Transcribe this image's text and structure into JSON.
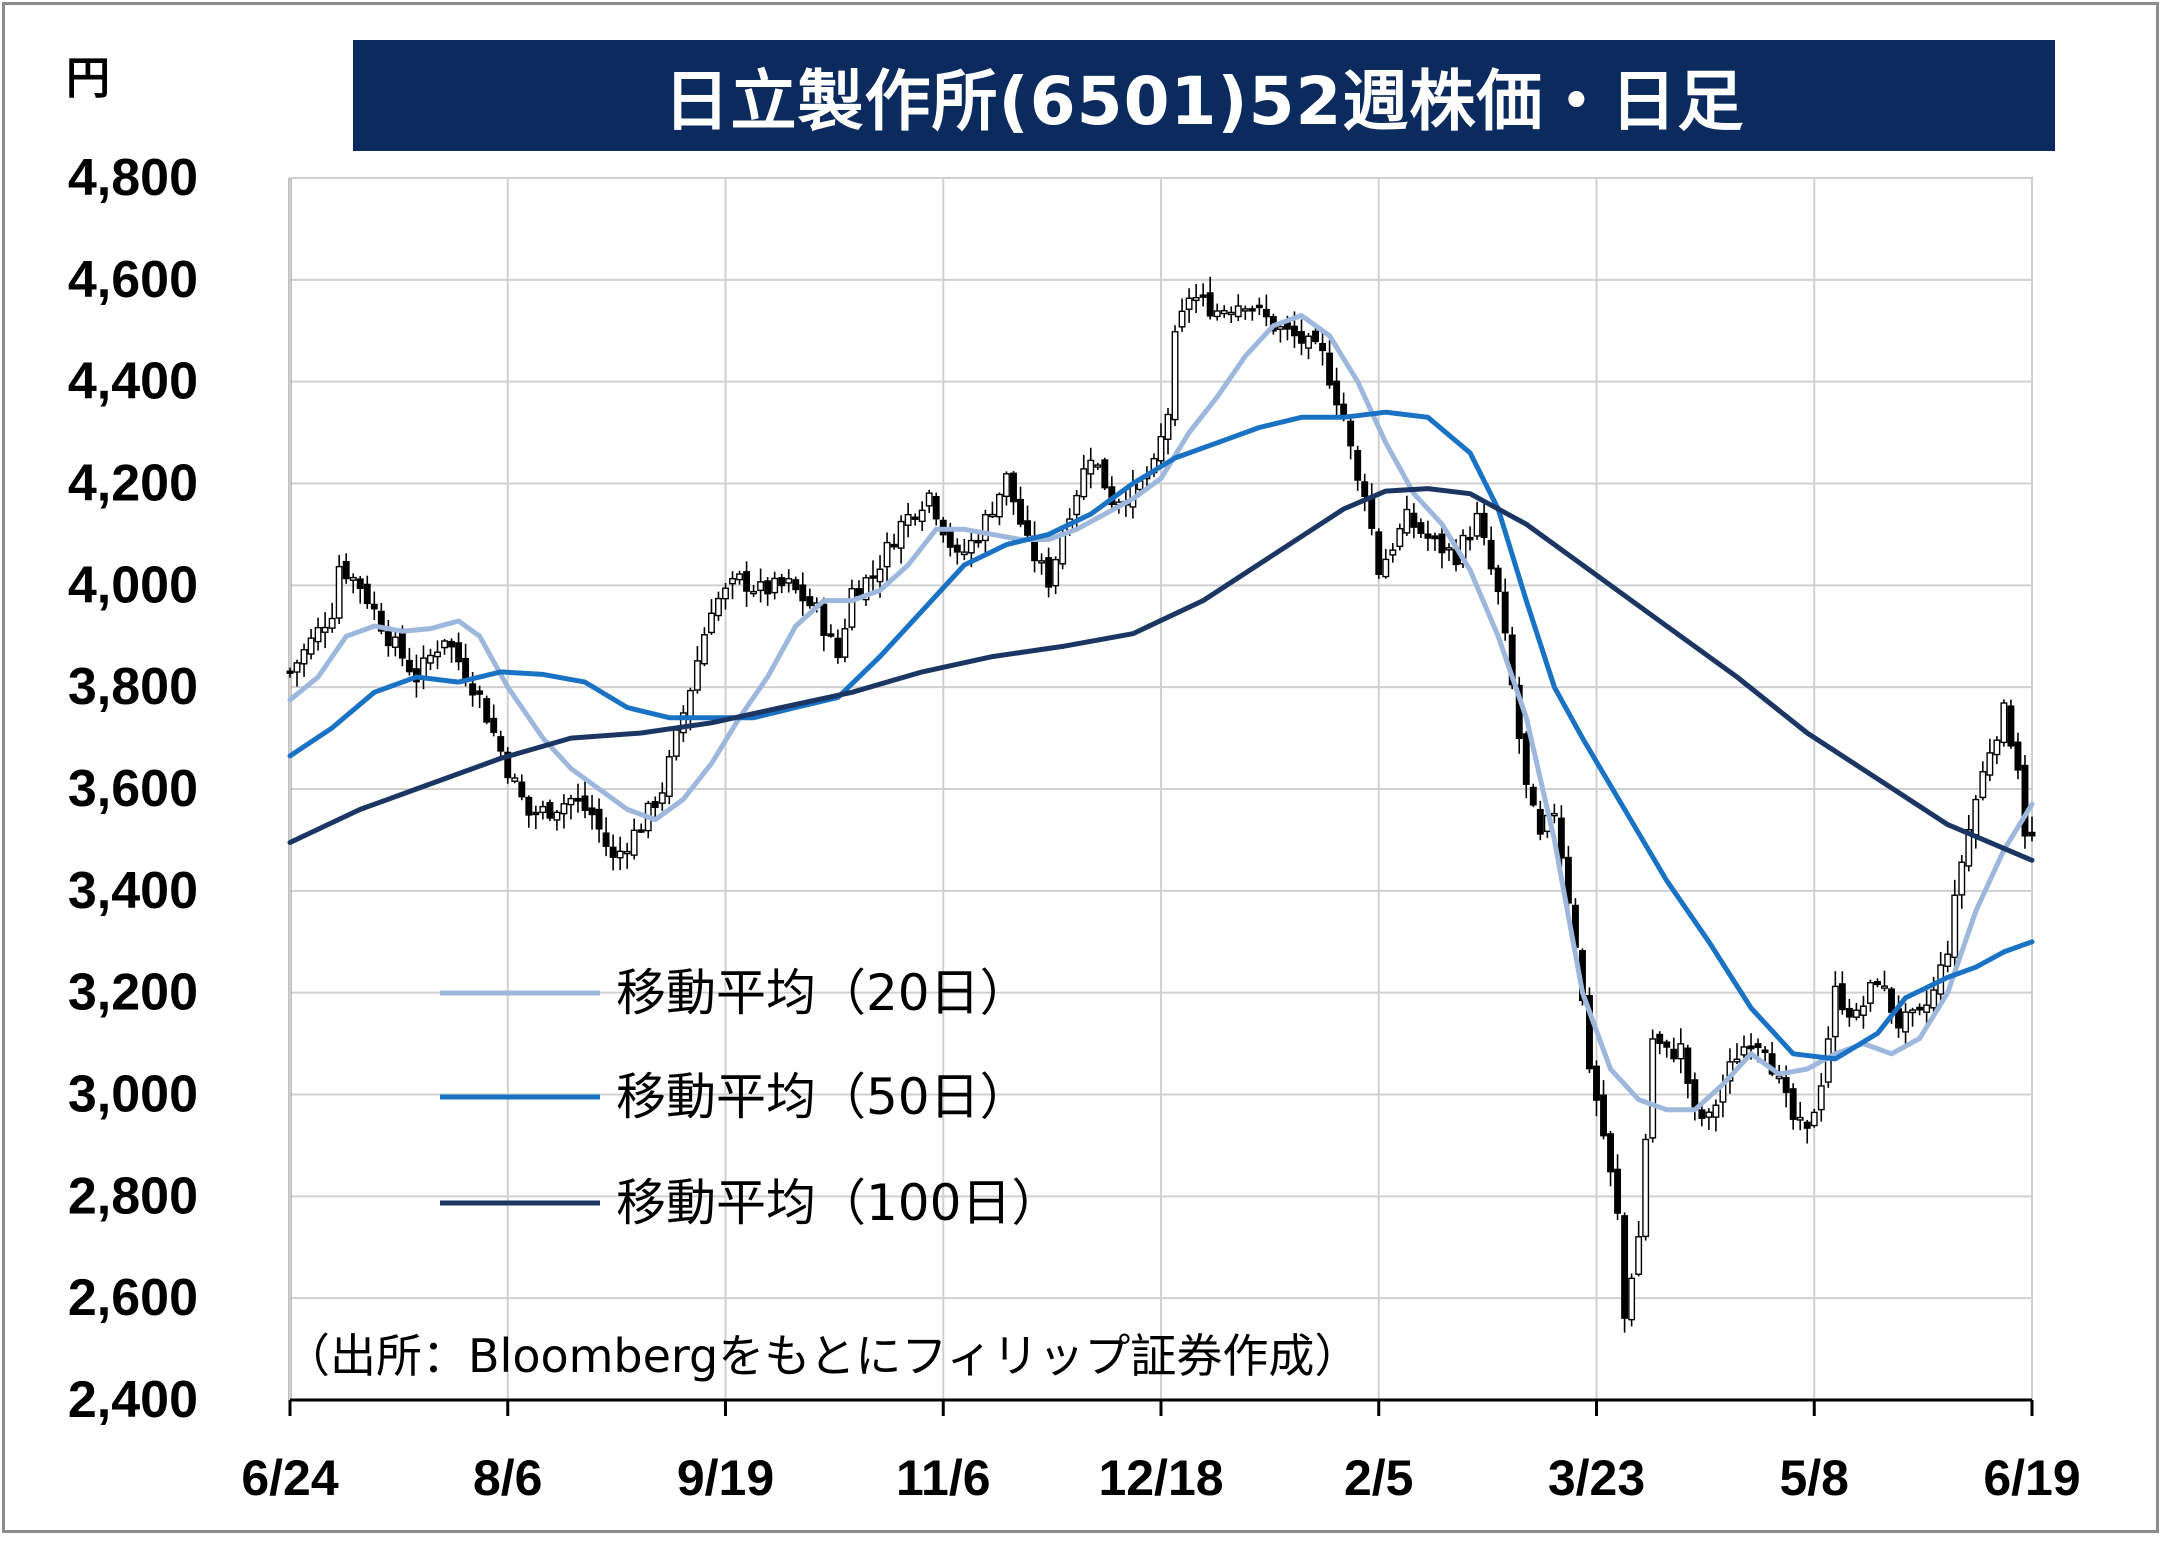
{
  "chart_data": {
    "type": "candlestick",
    "title": "日立製作所(6501)52週株価・日足",
    "ylabel": "円",
    "ylim": [
      2400,
      4800
    ],
    "yticks": [
      2400,
      2600,
      2800,
      3000,
      3200,
      3400,
      3600,
      3800,
      4000,
      4200,
      4400,
      4600,
      4800
    ],
    "ytick_labels": [
      "2,400",
      "2,600",
      "2,800",
      "3,000",
      "3,200",
      "3,400",
      "3,600",
      "3,800",
      "4,000",
      "4,200",
      "4,400",
      "4,600",
      "4,800"
    ],
    "x_index_range": [
      0,
      248
    ],
    "xticks": [
      {
        "label": "6/24",
        "index": 0
      },
      {
        "label": "8/6",
        "index": 31
      },
      {
        "label": "9/19",
        "index": 62
      },
      {
        "label": "11/6",
        "index": 93
      },
      {
        "label": "12/18",
        "index": 124
      },
      {
        "label": "2/5",
        "index": 155
      },
      {
        "label": "3/23",
        "index": 186
      },
      {
        "label": "5/8",
        "index": 217
      },
      {
        "label": "6/19",
        "index": 248
      }
    ],
    "grid": true,
    "legend_position": "center-left",
    "source_note": "（出所：Bloombergをもとにフィリップ証券作成）",
    "colors": {
      "title_bg": "#0b2a5e",
      "ma20": "#9db8dc",
      "ma50": "#1a72c4",
      "ma100": "#1c3664",
      "grid": "#d0d0d0"
    },
    "candle_anchors": [
      [
        0,
        3830
      ],
      [
        6,
        3950
      ],
      [
        7,
        4040
      ],
      [
        10,
        4000
      ],
      [
        14,
        3900
      ],
      [
        18,
        3820
      ],
      [
        22,
        3900
      ],
      [
        27,
        3780
      ],
      [
        31,
        3640
      ],
      [
        34,
        3550
      ],
      [
        37,
        3560
      ],
      [
        40,
        3580
      ],
      [
        43,
        3550
      ],
      [
        46,
        3460
      ],
      [
        50,
        3530
      ],
      [
        53,
        3600
      ],
      [
        57,
        3800
      ],
      [
        60,
        3960
      ],
      [
        64,
        4010
      ],
      [
        67,
        3990
      ],
      [
        71,
        4000
      ],
      [
        75,
        3950
      ],
      [
        78,
        3860
      ],
      [
        80,
        3990
      ],
      [
        83,
        4020
      ],
      [
        87,
        4120
      ],
      [
        91,
        4180
      ],
      [
        95,
        4050
      ],
      [
        98,
        4100
      ],
      [
        102,
        4210
      ],
      [
        105,
        4080
      ],
      [
        108,
        4010
      ],
      [
        111,
        4150
      ],
      [
        114,
        4260
      ],
      [
        117,
        4170
      ],
      [
        120,
        4180
      ],
      [
        123,
        4230
      ],
      [
        125,
        4340
      ],
      [
        126,
        4480
      ],
      [
        128,
        4570
      ],
      [
        132,
        4540
      ],
      [
        136,
        4560
      ],
      [
        140,
        4510
      ],
      [
        144,
        4480
      ],
      [
        147,
        4450
      ],
      [
        150,
        4330
      ],
      [
        152,
        4200
      ],
      [
        153,
        4190
      ],
      [
        155,
        4030
      ],
      [
        159,
        4130
      ],
      [
        163,
        4080
      ],
      [
        166,
        4060
      ],
      [
        169,
        4130
      ],
      [
        172,
        3980
      ],
      [
        174,
        3800
      ],
      [
        176,
        3600
      ],
      [
        178,
        3500
      ],
      [
        180,
        3560
      ],
      [
        183,
        3300
      ],
      [
        185,
        3060
      ],
      [
        187,
        2920
      ],
      [
        189,
        2760
      ],
      [
        190,
        2560
      ],
      [
        191,
        2650
      ],
      [
        192,
        2720
      ],
      [
        194,
        3110
      ],
      [
        196,
        3080
      ],
      [
        198,
        3090
      ],
      [
        200,
        2960
      ],
      [
        202,
        2950
      ],
      [
        204,
        3020
      ],
      [
        206,
        3080
      ],
      [
        208,
        3110
      ],
      [
        210,
        3100
      ],
      [
        212,
        3020
      ],
      [
        214,
        2950
      ],
      [
        216,
        2920
      ],
      [
        218,
        3030
      ],
      [
        220,
        3200
      ],
      [
        223,
        3150
      ],
      [
        226,
        3230
      ],
      [
        229,
        3140
      ],
      [
        232,
        3150
      ],
      [
        234,
        3200
      ],
      [
        236,
        3290
      ],
      [
        238,
        3460
      ],
      [
        240,
        3580
      ],
      [
        242,
        3680
      ],
      [
        244,
        3750
      ],
      [
        246,
        3650
      ],
      [
        247,
        3520
      ],
      [
        248,
        3500
      ]
    ],
    "series": [
      {
        "name": "移動平均（20日）",
        "x": [
          0,
          4,
          8,
          12,
          16,
          20,
          24,
          27,
          31,
          36,
          40,
          44,
          48,
          52,
          56,
          60,
          64,
          68,
          72,
          76,
          80,
          84,
          88,
          92,
          96,
          100,
          104,
          108,
          112,
          116,
          120,
          124,
          128,
          132,
          136,
          140,
          144,
          148,
          152,
          156,
          160,
          164,
          168,
          172,
          176,
          180,
          184,
          188,
          192,
          196,
          200,
          204,
          208,
          212,
          216,
          220,
          224,
          228,
          232,
          236,
          240,
          244,
          248
        ],
        "values": [
          3775,
          3820,
          3900,
          3920,
          3910,
          3915,
          3930,
          3900,
          3800,
          3700,
          3640,
          3600,
          3560,
          3540,
          3580,
          3650,
          3740,
          3820,
          3920,
          3970,
          3970,
          3990,
          4040,
          4110,
          4110,
          4100,
          4090,
          4090,
          4110,
          4140,
          4170,
          4210,
          4300,
          4370,
          4450,
          4510,
          4530,
          4490,
          4400,
          4280,
          4180,
          4120,
          4030,
          3900,
          3740,
          3500,
          3200,
          3050,
          2990,
          2970,
          2970,
          3020,
          3080,
          3040,
          3050,
          3080,
          3100,
          3080,
          3110,
          3200,
          3360,
          3480,
          3570
        ]
      },
      {
        "name": "移動平均（50日）",
        "x": [
          0,
          6,
          12,
          18,
          24,
          30,
          36,
          42,
          48,
          54,
          60,
          66,
          72,
          78,
          84,
          90,
          96,
          102,
          108,
          114,
          120,
          126,
          132,
          138,
          144,
          150,
          156,
          162,
          168,
          172,
          176,
          180,
          184,
          190,
          196,
          202,
          208,
          214,
          220,
          226,
          230,
          236,
          240,
          244,
          248
        ],
        "values": [
          3665,
          3720,
          3790,
          3820,
          3810,
          3830,
          3825,
          3810,
          3760,
          3740,
          3740,
          3740,
          3760,
          3780,
          3860,
          3950,
          4040,
          4080,
          4100,
          4140,
          4200,
          4250,
          4280,
          4310,
          4330,
          4330,
          4340,
          4330,
          4260,
          4150,
          3970,
          3800,
          3700,
          3560,
          3420,
          3300,
          3170,
          3080,
          3070,
          3120,
          3190,
          3230,
          3250,
          3280,
          3300
        ]
      },
      {
        "name": "移動平均（100日）",
        "x": [
          0,
          10,
          20,
          30,
          40,
          50,
          60,
          70,
          80,
          90,
          100,
          110,
          120,
          130,
          140,
          150,
          156,
          162,
          168,
          176,
          186,
          196,
          206,
          216,
          226,
          236,
          248
        ],
        "values": [
          3495,
          3560,
          3610,
          3660,
          3700,
          3710,
          3730,
          3760,
          3790,
          3830,
          3860,
          3880,
          3905,
          3970,
          4060,
          4150,
          4185,
          4190,
          4180,
          4120,
          4020,
          3920,
          3820,
          3710,
          3620,
          3530,
          3460
        ]
      }
    ]
  }
}
